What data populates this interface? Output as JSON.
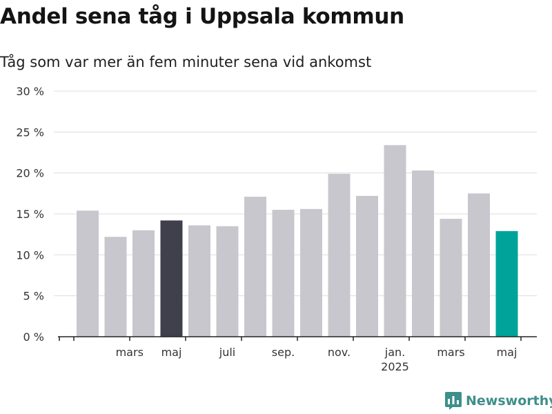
{
  "title": "Andel sena tåg i Uppsala kommun",
  "subtitle": "Tåg som var mer än fem minuter sena vid ankomst",
  "brand": "Newsworthy",
  "colors": {
    "bar": "#c8c7cd",
    "highlight_dark": "#40404c",
    "highlight_teal": "#00a39a",
    "grid": "#dcdcdc",
    "axis": "#222222"
  },
  "chart_data": {
    "type": "bar",
    "title": "Andel sena tåg i Uppsala kommun",
    "subtitle": "Tåg som var mer än fem minuter sena vid ankomst",
    "ylim": [
      0,
      30
    ],
    "yticks": [
      0,
      5,
      10,
      15,
      20,
      25,
      30
    ],
    "ytick_labels": [
      "0 %",
      "5 %",
      "10 %",
      "15 %",
      "20 %",
      "25 %",
      "30 %"
    ],
    "values": [
      15.4,
      12.2,
      13.0,
      14.2,
      13.6,
      13.5,
      17.1,
      15.5,
      15.6,
      19.9,
      17.2,
      23.4,
      20.3,
      14.4,
      17.5,
      12.9
    ],
    "highlights": {
      "3": "highlight_dark",
      "15": "highlight_teal"
    },
    "xtick_labels": [
      {
        "bar": 1.5,
        "label": "mars"
      },
      {
        "bar": 3,
        "label": "maj"
      },
      {
        "bar": 5,
        "label": "juli"
      },
      {
        "bar": 7,
        "label": "sep."
      },
      {
        "bar": 9,
        "label": "nov."
      },
      {
        "bar": 11,
        "label": "jan.",
        "sublabel": "2025"
      },
      {
        "bar": 13,
        "label": "mars"
      },
      {
        "bar": 15,
        "label": "maj"
      }
    ],
    "grid": true
  }
}
